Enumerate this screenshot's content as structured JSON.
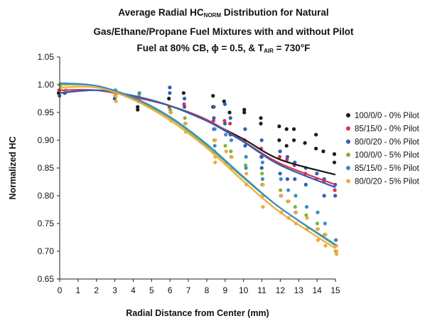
{
  "chart_data": {
    "type": "scatter",
    "title_line1_pre": "Average Radial HC",
    "title_line1_sub": "NORM",
    "title_line1_post": " Distribution for Natural",
    "title_line2": "Gas/Ethane/Propane Fuel Mixtures with and without Pilot",
    "title_line3_pre": "Fuel at 80% CB, ϕ = 0.5, & T",
    "title_line3_sub": "AIR",
    "title_line3_post": " = 730°F",
    "xlabel": "Radial Distance from Center (mm)",
    "ylabel": "Normalized HC",
    "xlim": [
      0,
      15
    ],
    "ylim": [
      0.65,
      1.05
    ],
    "x_ticks": [
      "0",
      "1",
      "2",
      "3",
      "4",
      "5",
      "6",
      "7",
      "8",
      "9",
      "10",
      "11",
      "12",
      "13",
      "14",
      "15"
    ],
    "y_ticks": [
      "0.65",
      "0.70",
      "0.75",
      "0.80",
      "0.85",
      "0.90",
      "0.95",
      "1.00",
      "1.05"
    ],
    "legend_position": "right",
    "grid": false,
    "series": [
      {
        "name": "100/0/0 - 0% Pilot",
        "color": "#1a1a1a",
        "fit": [
          0.985,
          0.99,
          0.98,
          0.962,
          0.935,
          0.902,
          0.865,
          0.838
        ],
        "fit_x": [
          0,
          2,
          4,
          6,
          8,
          10,
          12,
          15
        ],
        "points": [
          [
            0,
            0.985
          ],
          [
            4.3,
            0.96
          ],
          [
            4.3,
            0.955
          ],
          [
            6,
            0.975
          ],
          [
            6.8,
            0.985
          ],
          [
            8.4,
            0.98
          ],
          [
            8.4,
            0.96
          ],
          [
            9,
            0.97
          ],
          [
            9.3,
            0.95
          ],
          [
            10.1,
            0.955
          ],
          [
            10.1,
            0.95
          ],
          [
            11,
            0.94
          ],
          [
            11,
            0.93
          ],
          [
            12,
            0.925
          ],
          [
            12,
            0.9
          ],
          [
            12.4,
            0.92
          ],
          [
            12.4,
            0.89
          ],
          [
            12.8,
            0.92
          ],
          [
            12.8,
            0.9
          ],
          [
            13.4,
            0.895
          ],
          [
            14,
            0.91
          ],
          [
            14,
            0.885
          ],
          [
            14.4,
            0.88
          ],
          [
            15,
            0.875
          ],
          [
            15,
            0.86
          ]
        ]
      },
      {
        "name": "85/15/0 - 0% Pilot",
        "color": "#d8344f",
        "fit": [
          0.99,
          0.99,
          0.978,
          0.962,
          0.937,
          0.898,
          0.858,
          0.82
        ],
        "fit_x": [
          0,
          2,
          4,
          6,
          8,
          10,
          12,
          15
        ],
        "points": [
          [
            0,
            0.99
          ],
          [
            0.3,
            0.985
          ],
          [
            4.3,
            0.975
          ],
          [
            6,
            0.96
          ],
          [
            6.8,
            0.965
          ],
          [
            8.4,
            0.935
          ],
          [
            9,
            0.935
          ],
          [
            9.3,
            0.93
          ],
          [
            10.1,
            0.9
          ],
          [
            11,
            0.87
          ],
          [
            11,
            0.885
          ],
          [
            12,
            0.87
          ],
          [
            12.4,
            0.865
          ],
          [
            12.8,
            0.855
          ],
          [
            13.4,
            0.84
          ],
          [
            14,
            0.83
          ],
          [
            14.4,
            0.825
          ],
          [
            15,
            0.81
          ]
        ]
      },
      {
        "name": "80/0/20 - 0% Pilot",
        "color": "#2f5fb0",
        "fit": [
          0.985,
          0.99,
          0.98,
          0.962,
          0.935,
          0.897,
          0.855,
          0.815
        ],
        "fit_x": [
          0,
          2,
          4,
          6,
          8,
          10,
          12,
          15
        ],
        "points": [
          [
            0,
            0.98
          ],
          [
            0.3,
            0.985
          ],
          [
            3,
            0.975
          ],
          [
            4.3,
            0.97
          ],
          [
            6,
            0.995
          ],
          [
            6,
            0.985
          ],
          [
            6.8,
            0.975
          ],
          [
            6.8,
            0.96
          ],
          [
            8.4,
            0.96
          ],
          [
            8.4,
            0.94
          ],
          [
            8.4,
            0.92
          ],
          [
            9,
            0.965
          ],
          [
            9,
            0.93
          ],
          [
            9.3,
            0.94
          ],
          [
            9.3,
            0.91
          ],
          [
            10.1,
            0.92
          ],
          [
            10.1,
            0.89
          ],
          [
            11,
            0.9
          ],
          [
            11,
            0.87
          ],
          [
            11,
            0.85
          ],
          [
            12,
            0.88
          ],
          [
            12,
            0.84
          ],
          [
            12.4,
            0.87
          ],
          [
            12.4,
            0.83
          ],
          [
            12.8,
            0.86
          ],
          [
            12.8,
            0.83
          ],
          [
            13.4,
            0.85
          ],
          [
            13.4,
            0.82
          ],
          [
            14,
            0.84
          ],
          [
            14.4,
            0.83
          ],
          [
            14.4,
            0.8
          ],
          [
            15,
            0.82
          ],
          [
            15,
            0.8
          ]
        ]
      },
      {
        "name": "100/0/0 - 5% Pilot",
        "color": "#7fb53a",
        "fit": [
          1.0,
          0.998,
          0.975,
          0.94,
          0.89,
          0.832,
          0.778,
          0.71
        ],
        "fit_x": [
          0,
          2,
          4,
          6,
          8,
          10,
          12,
          15
        ],
        "points": [
          [
            0,
            1.0
          ],
          [
            3,
            0.99
          ],
          [
            3,
            0.98
          ],
          [
            4.3,
            0.98
          ],
          [
            6,
            0.955
          ],
          [
            6.8,
            0.94
          ],
          [
            8.4,
            0.9
          ],
          [
            8.4,
            0.88
          ],
          [
            9,
            0.89
          ],
          [
            9.3,
            0.88
          ],
          [
            10.1,
            0.855
          ],
          [
            11,
            0.84
          ],
          [
            11,
            0.82
          ],
          [
            12,
            0.81
          ],
          [
            12.4,
            0.79
          ],
          [
            12.8,
            0.78
          ],
          [
            13.4,
            0.765
          ],
          [
            14,
            0.75
          ],
          [
            14.4,
            0.73
          ],
          [
            15,
            0.72
          ],
          [
            15,
            0.7
          ]
        ]
      },
      {
        "name": "85/15/0 - 5% Pilot",
        "color": "#3a8ec8",
        "fit": [
          1.003,
          0.998,
          0.977,
          0.942,
          0.893,
          0.834,
          0.778,
          0.712
        ],
        "fit_x": [
          0,
          2,
          4,
          6,
          8,
          10,
          12,
          15
        ],
        "points": [
          [
            0,
            1.0
          ],
          [
            0.3,
            0.99
          ],
          [
            3,
            0.99
          ],
          [
            4.3,
            0.985
          ],
          [
            6,
            0.95
          ],
          [
            6.8,
            0.93
          ],
          [
            8.4,
            0.92
          ],
          [
            8.4,
            0.89
          ],
          [
            9,
            0.91
          ],
          [
            9.3,
            0.9
          ],
          [
            9.3,
            0.87
          ],
          [
            10.1,
            0.87
          ],
          [
            10.1,
            0.85
          ],
          [
            11,
            0.86
          ],
          [
            11,
            0.83
          ],
          [
            12,
            0.83
          ],
          [
            12,
            0.8
          ],
          [
            12.4,
            0.81
          ],
          [
            12.8,
            0.8
          ],
          [
            12.8,
            0.77
          ],
          [
            13.4,
            0.78
          ],
          [
            14,
            0.77
          ],
          [
            14,
            0.74
          ],
          [
            14.4,
            0.75
          ],
          [
            15,
            0.72
          ],
          [
            15,
            0.71
          ]
        ]
      },
      {
        "name": "80/0/20 - 5% Pilot",
        "color": "#f2a93a",
        "fit": [
          0.995,
          0.995,
          0.973,
          0.936,
          0.886,
          0.826,
          0.77,
          0.705
        ],
        "fit_x": [
          0,
          2,
          4,
          6,
          8,
          10,
          12,
          15
        ],
        "points": [
          [
            0,
            0.995
          ],
          [
            0.3,
            0.99
          ],
          [
            3,
            0.98
          ],
          [
            3,
            0.97
          ],
          [
            4.3,
            0.975
          ],
          [
            6,
            0.95
          ],
          [
            6,
            0.935
          ],
          [
            6.8,
            0.93
          ],
          [
            6.8,
            0.915
          ],
          [
            8.4,
            0.9
          ],
          [
            8.4,
            0.87
          ],
          [
            8.4,
            0.86
          ],
          [
            9,
            0.88
          ],
          [
            9,
            0.86
          ],
          [
            9.3,
            0.87
          ],
          [
            9.3,
            0.85
          ],
          [
            10.1,
            0.84
          ],
          [
            10.1,
            0.82
          ],
          [
            11,
            0.82
          ],
          [
            11,
            0.8
          ],
          [
            11,
            0.78
          ],
          [
            12,
            0.8
          ],
          [
            12,
            0.77
          ],
          [
            12.4,
            0.79
          ],
          [
            12.4,
            0.76
          ],
          [
            12.8,
            0.77
          ],
          [
            12.8,
            0.75
          ],
          [
            13.4,
            0.76
          ],
          [
            13.4,
            0.74
          ],
          [
            14,
            0.74
          ],
          [
            14,
            0.72
          ],
          [
            14.4,
            0.73
          ],
          [
            14.4,
            0.71
          ],
          [
            15,
            0.71
          ],
          [
            15,
            0.7
          ],
          [
            15,
            0.695
          ]
        ]
      }
    ]
  }
}
